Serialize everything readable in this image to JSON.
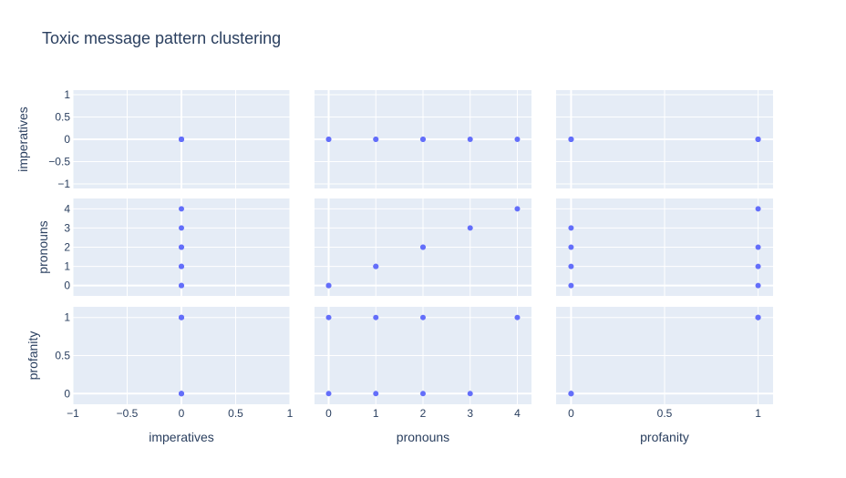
{
  "title": "Toxic message pattern clustering",
  "colors": {
    "plot_bg": "#e5ecf6",
    "grid": "#ffffff",
    "marker": "#636efa",
    "text": "#2a3f5f"
  },
  "chart_data": {
    "type": "scatter",
    "title": "Toxic message pattern clustering",
    "dimensions": [
      "imperatives",
      "pronouns",
      "profanity"
    ],
    "axis_labels": {
      "imperatives": "imperatives",
      "pronouns": "pronouns",
      "profanity": "profanity"
    },
    "ranges": {
      "imperatives": [
        -1,
        1
      ],
      "pronouns": [
        -0.3,
        4.3
      ],
      "profanity": [
        -0.08,
        1.08
      ]
    },
    "ticks": {
      "imperatives": [
        -1,
        -0.5,
        0,
        0.5,
        1
      ],
      "pronouns": [
        0,
        1,
        2,
        3,
        4
      ],
      "profanity": [
        0,
        0.5,
        1
      ]
    },
    "tick_labels": {
      "imperatives": [
        "−1",
        "−0.5",
        "0",
        "0.5",
        "1"
      ],
      "pronouns": [
        "0",
        "1",
        "2",
        "3",
        "4"
      ],
      "profanity": [
        "0",
        "0.5",
        "1"
      ]
    },
    "grid": true,
    "points": [
      {
        "imperatives": 0,
        "pronouns": 0,
        "profanity": 0
      },
      {
        "imperatives": 0,
        "pronouns": 1,
        "profanity": 0
      },
      {
        "imperatives": 0,
        "pronouns": 2,
        "profanity": 0
      },
      {
        "imperatives": 0,
        "pronouns": 3,
        "profanity": 0
      },
      {
        "imperatives": 0,
        "pronouns": 0,
        "profanity": 1
      },
      {
        "imperatives": 0,
        "pronouns": 1,
        "profanity": 1
      },
      {
        "imperatives": 0,
        "pronouns": 2,
        "profanity": 1
      },
      {
        "imperatives": 0,
        "pronouns": 4,
        "profanity": 1
      }
    ]
  }
}
